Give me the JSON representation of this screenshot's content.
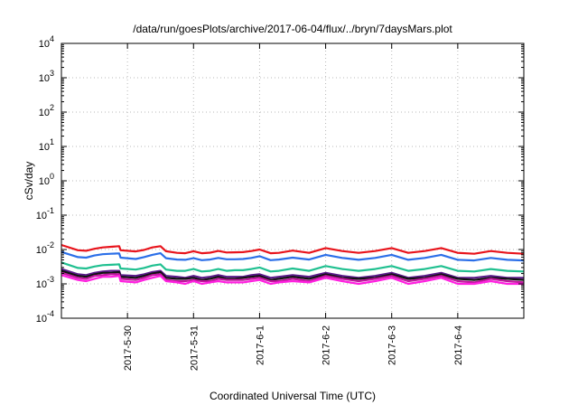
{
  "chart_data": {
    "type": "line",
    "title": "/data/run/goesPlots/archive/2017-06-04/flux/../bryn/7daysMars.plot",
    "xlabel": "Coordinated Universal Time (UTC)",
    "ylabel": "cSv/day",
    "y_scale": "log",
    "ylim": [
      0.0001,
      10000
    ],
    "y_ticks": [
      {
        "value": 0.0001,
        "base": "10",
        "exp": "-4"
      },
      {
        "value": 0.001,
        "base": "10",
        "exp": "-3"
      },
      {
        "value": 0.01,
        "base": "10",
        "exp": "-2"
      },
      {
        "value": 0.1,
        "base": "10",
        "exp": "-1"
      },
      {
        "value": 1,
        "base": "10",
        "exp": "0"
      },
      {
        "value": 10,
        "base": "10",
        "exp": "1"
      },
      {
        "value": 100,
        "base": "10",
        "exp": "2"
      },
      {
        "value": 1000,
        "base": "10",
        "exp": "3"
      },
      {
        "value": 10000,
        "base": "10",
        "exp": "4"
      }
    ],
    "xlim": [
      "2017-05-29T00:00",
      "2017-06-05T00:00"
    ],
    "x_ticks": [
      "2017-5-30",
      "2017-5-31",
      "2017-6-1",
      "2017-6-2",
      "2017-6-3",
      "2017-6-4"
    ],
    "x_tick_dates": [
      "2017-05-30T00:00",
      "2017-05-31T00:00",
      "2017-06-01T00:00",
      "2017-06-02T00:00",
      "2017-06-03T00:00",
      "2017-06-04T00:00"
    ],
    "grid": true,
    "legend": "none",
    "x": [
      "2017-05-29T00:00",
      "2017-05-29T06:00",
      "2017-05-29T09:00",
      "2017-05-29T12:00",
      "2017-05-29T15:00",
      "2017-05-29T18:00",
      "2017-05-29T21:00",
      "2017-05-29T21:30",
      "2017-05-30T03:00",
      "2017-05-30T06:00",
      "2017-05-30T09:00",
      "2017-05-30T12:00",
      "2017-05-30T14:00",
      "2017-05-30T18:00",
      "2017-05-30T21:00",
      "2017-05-31T00:00",
      "2017-05-31T03:00",
      "2017-05-31T06:00",
      "2017-05-31T09:00",
      "2017-05-31T12:00",
      "2017-05-31T15:00",
      "2017-05-31T18:00",
      "2017-05-31T21:00",
      "2017-06-01T00:00",
      "2017-06-01T04:00",
      "2017-06-01T07:00",
      "2017-06-01T12:00",
      "2017-06-01T18:00",
      "2017-06-02T00:00",
      "2017-06-02T06:00",
      "2017-06-02T12:00",
      "2017-06-02T18:00",
      "2017-06-03T00:00",
      "2017-06-03T06:00",
      "2017-06-03T12:00",
      "2017-06-03T18:00",
      "2017-06-04T00:00",
      "2017-06-04T06:00",
      "2017-06-04T12:00",
      "2017-06-04T18:00",
      "2017-06-05T00:00"
    ],
    "series": [
      {
        "color": "#e8141c",
        "values": [
          0.0135,
          0.0095,
          0.0092,
          0.0105,
          0.0115,
          0.012,
          0.0125,
          0.0095,
          0.0088,
          0.0097,
          0.0115,
          0.0125,
          0.0089,
          0.008,
          0.0078,
          0.0089,
          0.0078,
          0.0081,
          0.0091,
          0.0082,
          0.0083,
          0.0084,
          0.009,
          0.01,
          0.0078,
          0.008,
          0.0093,
          0.008,
          0.011,
          0.009,
          0.008,
          0.009,
          0.011,
          0.008,
          0.009,
          0.011,
          0.008,
          0.0075,
          0.009,
          0.008,
          0.0075
        ]
      },
      {
        "color": "#2b6fe8",
        "values": [
          0.0085,
          0.006,
          0.0058,
          0.0067,
          0.0073,
          0.0075,
          0.0077,
          0.0058,
          0.0053,
          0.006,
          0.007,
          0.0078,
          0.0056,
          0.0051,
          0.005,
          0.0056,
          0.0049,
          0.0051,
          0.0057,
          0.0052,
          0.0052,
          0.0053,
          0.0057,
          0.0064,
          0.0049,
          0.0051,
          0.0058,
          0.0051,
          0.007,
          0.0057,
          0.005,
          0.0057,
          0.007,
          0.005,
          0.0057,
          0.007,
          0.005,
          0.0048,
          0.0057,
          0.005,
          0.0048
        ]
      },
      {
        "color": "#20c090",
        "values": [
          0.0042,
          0.0029,
          0.0028,
          0.0032,
          0.0035,
          0.0036,
          0.0037,
          0.0028,
          0.0026,
          0.0029,
          0.0034,
          0.0037,
          0.0026,
          0.0024,
          0.0024,
          0.0027,
          0.0023,
          0.0024,
          0.0027,
          0.0024,
          0.0025,
          0.0025,
          0.0027,
          0.003,
          0.0023,
          0.0024,
          0.0028,
          0.0024,
          0.0033,
          0.0027,
          0.0024,
          0.0027,
          0.0033,
          0.0024,
          0.0027,
          0.0033,
          0.0024,
          0.0023,
          0.0027,
          0.0024,
          0.0023
        ]
      },
      {
        "color": "#5a1a8a",
        "values": [
          0.0027,
          0.0019,
          0.0018,
          0.0021,
          0.0023,
          0.0024,
          0.0024,
          0.0018,
          0.0017,
          0.0019,
          0.0022,
          0.0024,
          0.0017,
          0.0016,
          0.0015,
          0.0017,
          0.0015,
          0.0016,
          0.0018,
          0.0016,
          0.0016,
          0.0016,
          0.0018,
          0.0019,
          0.0015,
          0.0016,
          0.0018,
          0.0016,
          0.0021,
          0.0017,
          0.0015,
          0.0017,
          0.0021,
          0.0015,
          0.0017,
          0.0021,
          0.0015,
          0.0015,
          0.0017,
          0.0015,
          0.0015
        ]
      },
      {
        "color": "#111111",
        "values": [
          0.0024,
          0.0017,
          0.0016,
          0.0019,
          0.0021,
          0.0021,
          0.0022,
          0.0016,
          0.0015,
          0.0017,
          0.002,
          0.0022,
          0.0015,
          0.0014,
          0.0014,
          0.0015,
          0.0013,
          0.0014,
          0.0016,
          0.0014,
          0.0014,
          0.0015,
          0.0016,
          0.0017,
          0.0013,
          0.0014,
          0.0016,
          0.0014,
          0.0019,
          0.0015,
          0.0014,
          0.0015,
          0.0019,
          0.0014,
          0.0015,
          0.0019,
          0.0014,
          0.0013,
          0.0015,
          0.0014,
          0.0013
        ]
      },
      {
        "color": "#c0179e",
        "values": [
          0.0021,
          0.0015,
          0.0014,
          0.0017,
          0.0018,
          0.0019,
          0.0019,
          0.0014,
          0.0013,
          0.0015,
          0.0018,
          0.0019,
          0.0013,
          0.0012,
          0.0012,
          0.0013,
          0.0012,
          0.0012,
          0.0014,
          0.0013,
          0.0013,
          0.0013,
          0.0014,
          0.0015,
          0.0012,
          0.0012,
          0.0014,
          0.0012,
          0.0017,
          0.0014,
          0.0012,
          0.0014,
          0.0017,
          0.0012,
          0.0014,
          0.0017,
          0.0012,
          0.0011,
          0.0014,
          0.0012,
          0.0011
        ]
      },
      {
        "color": "#ff20e0",
        "values": [
          0.0018,
          0.0013,
          0.0012,
          0.0014,
          0.0016,
          0.0016,
          0.0017,
          0.0012,
          0.0011,
          0.0013,
          0.0015,
          0.0017,
          0.0012,
          0.0011,
          0.001,
          0.0012,
          0.001,
          0.0011,
          0.0012,
          0.0011,
          0.0011,
          0.0011,
          0.0012,
          0.0013,
          0.001,
          0.0011,
          0.0012,
          0.0011,
          0.0015,
          0.0012,
          0.001,
          0.0012,
          0.0015,
          0.001,
          0.0012,
          0.0015,
          0.001,
          0.001,
          0.0012,
          0.001,
          0.001
        ]
      }
    ]
  }
}
